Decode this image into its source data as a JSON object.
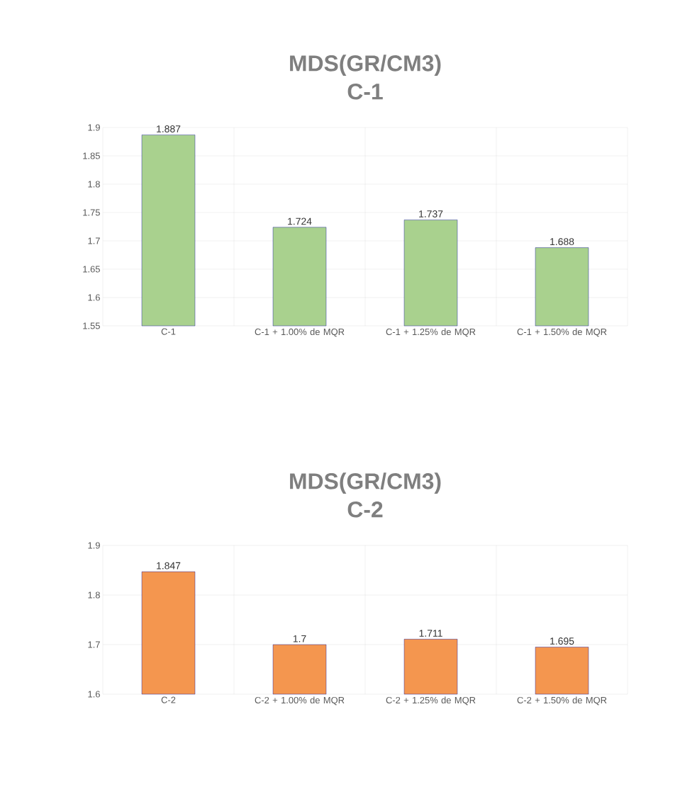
{
  "chart_data": [
    {
      "type": "bar",
      "title": "MDS(GR/CM3)",
      "subtitle": "C-1",
      "categories": [
        "C-1",
        "C-1 + 1.00% de MQR",
        "C-1 + 1.25% de MQR",
        "C-1 + 1.50% de MQR"
      ],
      "series": [
        {
          "color": "#a9d18e",
          "values": [
            1.887,
            1.724,
            1.737,
            1.688
          ]
        }
      ],
      "ylim": [
        1.55,
        1.9
      ],
      "yticks": [
        1.55,
        1.6,
        1.65,
        1.7,
        1.75,
        1.8,
        1.85,
        1.9
      ],
      "grid": true,
      "data_labels": true
    },
    {
      "type": "bar",
      "title": "MDS(GR/CM3)",
      "subtitle": "C-2",
      "categories": [
        "C-2",
        "C-2 + 1.00% de MQR",
        "C-2 + 1.25% de MQR",
        "C-2 + 1.50% de MQR"
      ],
      "series": [
        {
          "color": "#f4964f",
          "values": [
            1.847,
            1.7,
            1.711,
            1.695
          ]
        }
      ],
      "ylim": [
        1.6,
        1.9
      ],
      "yticks": [
        1.6,
        1.7,
        1.8,
        1.9
      ],
      "grid": true,
      "data_labels": true
    }
  ]
}
